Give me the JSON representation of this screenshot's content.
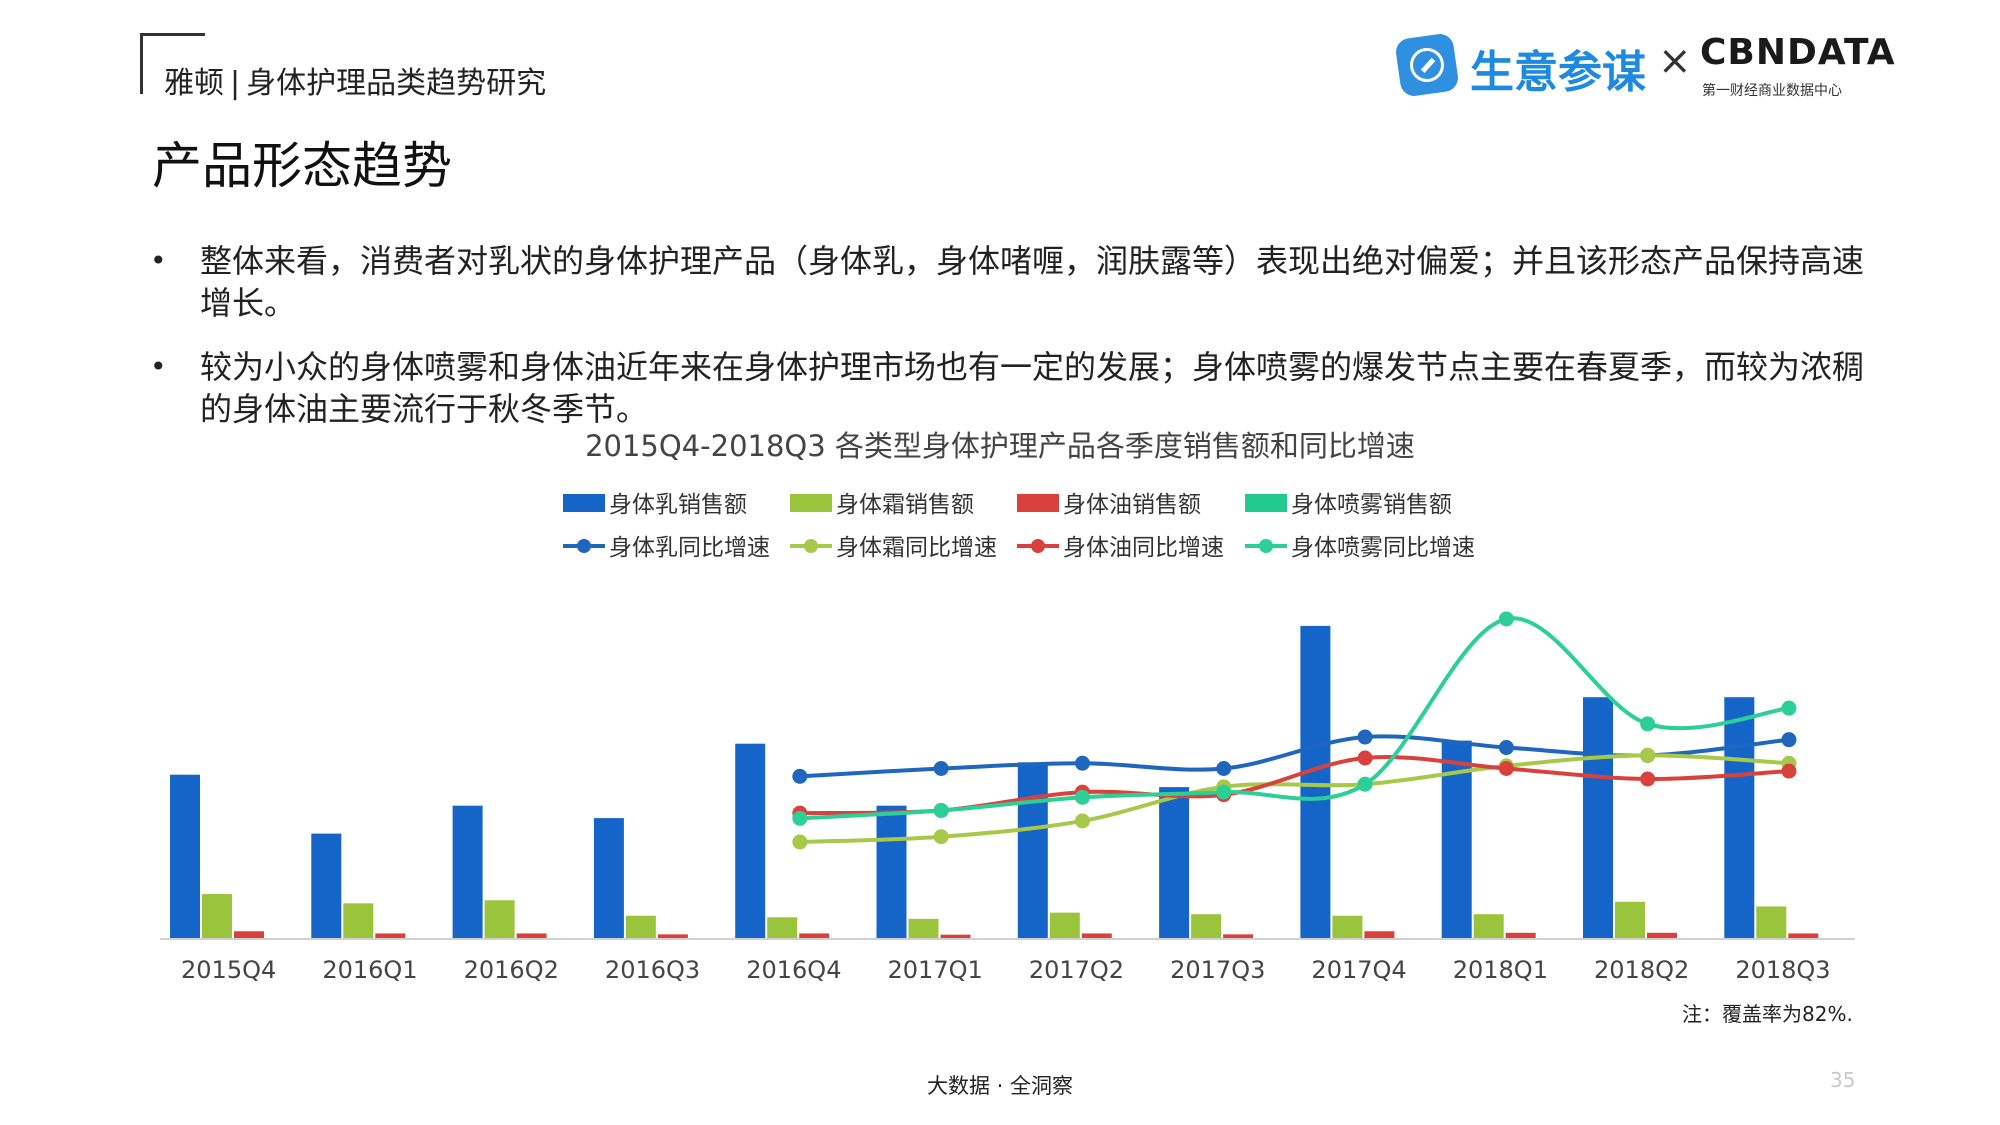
{
  "header": {
    "brand": "雅顿",
    "separator": "|",
    "subtitle": "身体护理品类趋势研究",
    "logo_cn": "生意参谋",
    "logo_x": "×",
    "logo_cbn": "CBNDATA",
    "logo_cbn_sub": "第一财经商业数据中心"
  },
  "page_title": "产品形态趋势",
  "bullets": [
    "整体来看，消费者对乳状的身体护理产品（身体乳，身体啫喱，润肤露等）表现出绝对偏爱；并且该形态产品保持高速增长。",
    "较为小众的身体喷雾和身体油近年来在身体护理市场也有一定的发展；身体喷雾的爆发节点主要在春夏季，而较为浓稠的身体油主要流行于秋冬季节。"
  ],
  "bullet_symbol": "•",
  "chart_data": {
    "type": "bar",
    "title": "2015Q4-2018Q3 各类型身体护理产品各季度销售额和同比增速",
    "categories": [
      "2015Q4",
      "2016Q1",
      "2016Q2",
      "2016Q3",
      "2016Q4",
      "2017Q1",
      "2017Q2",
      "2017Q3",
      "2017Q4",
      "2018Q1",
      "2018Q2",
      "2018Q3"
    ],
    "bar_series": [
      {
        "name": "身体乳销售额",
        "color": "#1565c8",
        "values": [
          53,
          34,
          43,
          39,
          63,
          43,
          57,
          49,
          101,
          64,
          78,
          78
        ]
      },
      {
        "name": "身体霜销售额",
        "color": "#9ac43c",
        "values": [
          14.5,
          11.5,
          12.5,
          7.5,
          7,
          6.5,
          8.5,
          8,
          7.5,
          8,
          12,
          10.5
        ]
      },
      {
        "name": "身体油销售额",
        "color": "#d9423c",
        "values": [
          2.5,
          1.8,
          1.8,
          1.5,
          1.8,
          1.4,
          1.8,
          1.5,
          2.5,
          2.0,
          2.0,
          1.8
        ]
      },
      {
        "name": "身体喷雾销售额",
        "color": "#22c98f",
        "values": [
          0.3,
          0.3,
          0.3,
          0.3,
          0.3,
          0.3,
          0.3,
          0.3,
          0.3,
          0.3,
          0.3,
          0.3
        ]
      }
    ],
    "line_series": [
      {
        "name": "身体乳同比增速",
        "color": "#1f66be",
        "start_index": 4,
        "values": [
          42,
          45,
          47,
          45,
          57,
          53,
          50,
          56
        ]
      },
      {
        "name": "身体霜同比增速",
        "color": "#a8c84a",
        "start_index": 4,
        "values": [
          17,
          19,
          25,
          38,
          39,
          46,
          50,
          47
        ]
      },
      {
        "name": "身体油同比增速",
        "color": "#d9423c",
        "start_index": 4,
        "values": [
          28,
          29,
          36,
          35,
          49,
          45,
          41,
          44
        ]
      },
      {
        "name": "身体喷雾同比增速",
        "color": "#2ccf95",
        "start_index": 4,
        "values": [
          26,
          29,
          34,
          36,
          39,
          102,
          62,
          68
        ]
      }
    ],
    "bar_axis_max": 110,
    "line_axis_min": -20,
    "line_axis_max": 110,
    "legend_placement": "top",
    "grid": false
  },
  "note": "注：覆盖率为82%.",
  "footer": "大数据 · 全洞察",
  "page_number": "35"
}
